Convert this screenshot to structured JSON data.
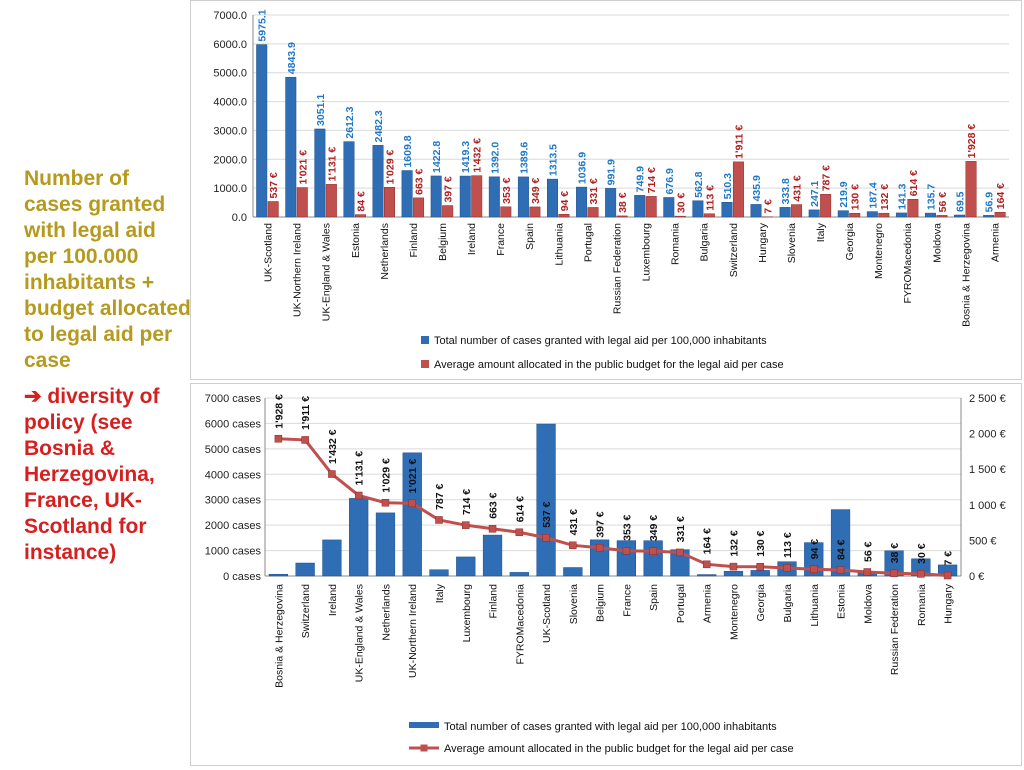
{
  "slide": {
    "main_text": "Number of cases granted with legal aid per 100.000 inhabitants + budget allocated to legal aid per case",
    "sub_text": "➔ diversity of policy (see Bosnia & Herzegovina, France, UK-Scotland for instance)"
  },
  "colors": {
    "cases_bar": "#2f6db5",
    "budget_bar": "#c0504d",
    "line": "#c0504d",
    "text_gold": "#b59a1e",
    "text_red": "#d62020",
    "case_label": "#1f77c8",
    "budget_label": "#b02020"
  },
  "chart_data": [
    {
      "type": "bar",
      "categories": [
        "UK-Scotland",
        "UK-Northern Ireland",
        "UK-England & Wales",
        "Estonia",
        "Netherlands",
        "Finland",
        "Belgium",
        "Ireland",
        "France",
        "Spain",
        "Lithuania",
        "Portugal",
        "Russian Federation",
        "Luxembourg",
        "Romania",
        "Bulgaria",
        "Switzerland",
        "Hungary",
        "Slovenia",
        "Italy",
        "Georgia",
        "Montenegro",
        "FYROMacedonia",
        "Moldova",
        "Bosnia & Herzegovina",
        "Armenia"
      ],
      "series": [
        {
          "name": "Total number of cases granted with legal aid per 100,000 inhabitants",
          "values": [
            5975.1,
            4843.9,
            3051.1,
            2612.3,
            2482.3,
            1609.8,
            1422.8,
            1419.3,
            1392.0,
            1389.6,
            1313.5,
            1036.9,
            991.9,
            749.9,
            676.9,
            562.8,
            510.3,
            435.9,
            333.8,
            247.1,
            219.9,
            187.4,
            141.3,
            135.7,
            69.5,
            56.9
          ],
          "labels": [
            "5975.1",
            "4843.9",
            "3051.1",
            "2612.3",
            "2482.3",
            "1609.8",
            "1422.8",
            "1419.3",
            "1392.0",
            "1389.6",
            "1313.5",
            "1036.9",
            "991.9",
            "749.9",
            "676.9",
            "562.8",
            "510.3",
            "435.9",
            "333.8",
            "247.1",
            "219.9",
            "187.4",
            "141.3",
            "135.7",
            "69.5",
            "56.9"
          ]
        },
        {
          "name": "Average amount allocated in the public budget for the legal aid per case",
          "values": [
            537,
            1021,
            1131,
            84,
            1029,
            663,
            397,
            1432,
            353,
            349,
            94,
            331,
            38,
            714,
            30,
            113,
            1911,
            7,
            431,
            787,
            130,
            132,
            614,
            56,
            1928,
            164
          ],
          "labels": [
            "537 €",
            "1'021 €",
            "1'131 €",
            "84 €",
            "1'029 €",
            "663 €",
            "397 €",
            "1'432 €",
            "353 €",
            "349 €",
            "94 €",
            "331 €",
            "38 €",
            "714 €",
            "30 €",
            "113 €",
            "1'911 €",
            "7 €",
            "431 €",
            "787 €",
            "130 €",
            "132 €",
            "614 €",
            "56 €",
            "1'928 €",
            "164 €"
          ]
        }
      ],
      "y_ticks": [
        "7000.0",
        "6000.0",
        "5000.0",
        "4000.0",
        "3000.0",
        "2000.0",
        "1000.0",
        "0.0"
      ],
      "ylim": [
        0,
        7000
      ],
      "legend_placement": "bottom"
    },
    {
      "type": "bar+line",
      "categories": [
        "Bosnia & Herzegovina",
        "Switzerland",
        "Ireland",
        "UK-England & Wales",
        "Netherlands",
        "UK-Northern Ireland",
        "Italy",
        "Luxembourg",
        "Finland",
        "FYROMacedonia",
        "UK-Scotland",
        "Slovenia",
        "Belgium",
        "France",
        "Spain",
        "Portugal",
        "Armenia",
        "Montenegro",
        "Georgia",
        "Bulgaria",
        "Lithuania",
        "Estonia",
        "Moldova",
        "Russian Federation",
        "Romania",
        "Hungary"
      ],
      "series": [
        {
          "name": "Total number of cases granted with legal aid per 100,000 inhabitants",
          "axis": "left",
          "values": [
            69.5,
            510.3,
            1419.3,
            3051.1,
            2482.3,
            4843.9,
            247.1,
            749.9,
            1609.8,
            141.3,
            5975.1,
            333.8,
            1422.8,
            1392.0,
            1389.6,
            1036.9,
            56.9,
            187.4,
            219.9,
            562.8,
            1313.5,
            2612.3,
            135.7,
            991.9,
            676.9,
            435.9
          ]
        },
        {
          "name": "Average amount allocated in the public budget for the legal aid per case",
          "axis": "right",
          "values": [
            1928,
            1911,
            1432,
            1131,
            1029,
            1021,
            787,
            714,
            663,
            614,
            537,
            431,
            397,
            353,
            349,
            331,
            164,
            132,
            130,
            113,
            94,
            84,
            56,
            38,
            30,
            7
          ],
          "labels": [
            "1'928 €",
            "1'911 €",
            "1'432 €",
            "1'131 €",
            "1'029 €",
            "1'021 €",
            "787 €",
            "714 €",
            "663 €",
            "614 €",
            "537 €",
            "431 €",
            "397 €",
            "353 €",
            "349 €",
            "331 €",
            "164 €",
            "132 €",
            "130 €",
            "113 €",
            "94 €",
            "84 €",
            "56 €",
            "38 €",
            "30 €",
            "7 €"
          ]
        }
      ],
      "y_left_ticks": [
        "7000 cases",
        "6000 cases",
        "5000 cases",
        "4000 cases",
        "3000 cases",
        "2000 cases",
        "1000 cases",
        "0 cases"
      ],
      "y_right_ticks": [
        "2 500 €",
        "2 000 €",
        "1 500 €",
        "1 000 €",
        "500 €",
        "0 €"
      ],
      "ylim_left": [
        0,
        7000
      ],
      "ylim_right": [
        0,
        2500
      ],
      "legend_placement": "bottom"
    }
  ]
}
